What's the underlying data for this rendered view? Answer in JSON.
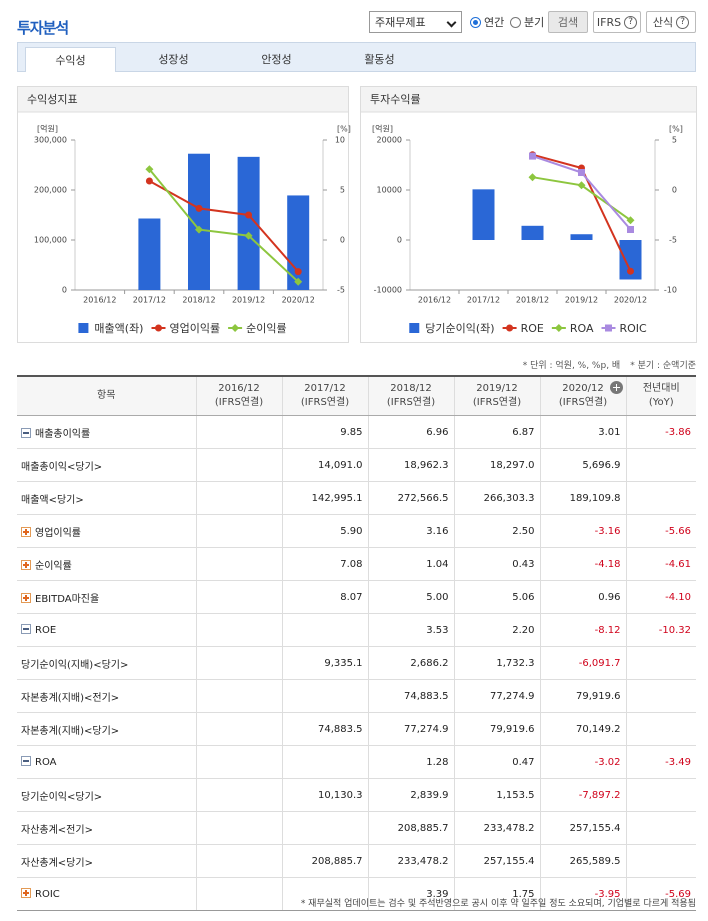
{
  "header": {
    "title": "투자분석",
    "select": "주재무제표",
    "radios": [
      "연간",
      "분기"
    ],
    "buttons": [
      "검색",
      "IFRS",
      "산식"
    ],
    "help_icon": "?"
  },
  "tabs": {
    "items": [
      "수익성",
      "성장성",
      "안정성",
      "활동성"
    ],
    "active": 0
  },
  "chart_data": [
    {
      "type": "combo",
      "title": "수익성지표",
      "y_label": "[억원]",
      "y2_label": "[%]",
      "categories": [
        "2016/12",
        "2017/12",
        "2018/12",
        "2019/12",
        "2020/12"
      ],
      "series": [
        {
          "name": "매출액(좌)",
          "type": "bar",
          "color": "#2a67d6",
          "values": [
            null,
            142995.1,
            272566.5,
            266303.3,
            189109.8
          ]
        },
        {
          "name": "영업이익률",
          "type": "line",
          "marker": "circle",
          "axis": "y2",
          "color": "#d3341f",
          "values": [
            null,
            5.9,
            3.16,
            2.5,
            -3.16
          ]
        },
        {
          "name": "순이익률",
          "type": "line",
          "marker": "diamond",
          "axis": "y2",
          "color": "#8dc63f",
          "values": [
            null,
            7.08,
            1.04,
            0.43,
            -4.18
          ]
        }
      ],
      "ylim": [
        0,
        300000
      ],
      "yticks": [
        0,
        {
          "value": 100000,
          "label": "100,000"
        },
        {
          "value": 200000,
          "label": "200,000"
        },
        {
          "value": 300000,
          "label": "300,000"
        }
      ],
      "y2lim": [
        -5,
        10
      ],
      "y2ticks": [
        -5,
        0,
        5,
        10
      ]
    },
    {
      "type": "combo",
      "title": "투자수익률",
      "y_label": "[억원]",
      "y2_label": "[%]",
      "categories": [
        "2016/12",
        "2017/12",
        "2018/12",
        "2019/12",
        "2020/12"
      ],
      "series": [
        {
          "name": "당기순이익(좌)",
          "type": "bar",
          "color": "#2a67d6",
          "values": [
            null,
            10130.3,
            2839.9,
            1153.5,
            -7897.2
          ]
        },
        {
          "name": "ROE",
          "type": "line",
          "marker": "circle",
          "axis": "y2",
          "color": "#d3341f",
          "values": [
            null,
            null,
            3.53,
            2.2,
            -8.12
          ]
        },
        {
          "name": "ROA",
          "type": "line",
          "marker": "diamond",
          "axis": "y2",
          "color": "#8dc63f",
          "values": [
            null,
            null,
            1.28,
            0.47,
            -3.02
          ]
        },
        {
          "name": "ROIC",
          "type": "line",
          "marker": "square",
          "axis": "y2",
          "color": "#a98ae0",
          "values": [
            null,
            null,
            3.39,
            1.75,
            -3.95
          ]
        }
      ],
      "ylim": [
        -10000,
        20000
      ],
      "yticks": [
        -10000,
        0,
        10000,
        20000
      ],
      "y2lim": [
        -10,
        5
      ],
      "y2ticks": [
        -10,
        -5,
        0,
        5
      ]
    }
  ],
  "notes": [
    "* 단위 : 억원, %, %p, 배",
    "* 분기 : 순액기준"
  ],
  "table": {
    "headers": [
      [
        "항목"
      ],
      [
        "2016/12",
        "(IFRS연결)"
      ],
      [
        "2017/12",
        "(IFRS연결)"
      ],
      [
        "2018/12",
        "(IFRS연결)"
      ],
      [
        "2019/12",
        "(IFRS연결)"
      ],
      [
        "2020/12",
        "(IFRS연결)"
      ],
      [
        "전년대비",
        "(YoY)"
      ]
    ],
    "rows": [
      {
        "label": "매출총이익률",
        "toggle": "minus",
        "cells": [
          null,
          "9.85",
          "6.96",
          "6.87",
          "3.01",
          "-3.86"
        ]
      },
      {
        "label": "매출총이익<당기>",
        "cells": [
          null,
          "14,091.0",
          "18,962.3",
          "18,297.0",
          "5,696.9",
          null
        ]
      },
      {
        "label": "매출액<당기>",
        "cells": [
          null,
          "142,995.1",
          "272,566.5",
          "266,303.3",
          "189,109.8",
          null
        ]
      },
      {
        "label": "영업이익률",
        "toggle": "plus",
        "cells": [
          null,
          "5.90",
          "3.16",
          "2.50",
          "-3.16",
          "-5.66"
        ]
      },
      {
        "label": "순이익률",
        "toggle": "plus",
        "cells": [
          null,
          "7.08",
          "1.04",
          "0.43",
          "-4.18",
          "-4.61"
        ]
      },
      {
        "label": "EBITDA마진율",
        "toggle": "plus",
        "cells": [
          null,
          "8.07",
          "5.00",
          "5.06",
          "0.96",
          "-4.10"
        ]
      },
      {
        "label": "ROE",
        "toggle": "minus",
        "cells": [
          null,
          null,
          "3.53",
          "2.20",
          "-8.12",
          "-10.32"
        ]
      },
      {
        "label": "당기순이익(지배)<당기>",
        "cells": [
          null,
          "9,335.1",
          "2,686.2",
          "1,732.3",
          "-6,091.7",
          null
        ]
      },
      {
        "label": "자본총계(지배)<전기>",
        "cells": [
          null,
          null,
          "74,883.5",
          "77,274.9",
          "79,919.6",
          null
        ]
      },
      {
        "label": "자본총계(지배)<당기>",
        "cells": [
          null,
          "74,883.5",
          "77,274.9",
          "79,919.6",
          "70,149.2",
          null
        ]
      },
      {
        "label": "ROA",
        "toggle": "minus",
        "cells": [
          null,
          null,
          "1.28",
          "0.47",
          "-3.02",
          "-3.49"
        ]
      },
      {
        "label": "당기순이익<당기>",
        "cells": [
          null,
          "10,130.3",
          "2,839.9",
          "1,153.5",
          "-7,897.2",
          null
        ]
      },
      {
        "label": "자산총계<전기>",
        "cells": [
          null,
          null,
          "208,885.7",
          "233,478.2",
          "257,155.4",
          null
        ]
      },
      {
        "label": "자산총계<당기>",
        "cells": [
          null,
          "208,885.7",
          "233,478.2",
          "257,155.4",
          "265,589.5",
          null
        ]
      },
      {
        "label": "ROIC",
        "toggle": "plus",
        "cells": [
          null,
          null,
          "3.39",
          "1.75",
          "-3.95",
          "-5.69"
        ]
      }
    ]
  },
  "footer": "* 재무실적 업데이트는 검수 및 주석반영으로 공시 이후 약 일주일 정도 소요되며, 기업별로 다르게 적용됨"
}
